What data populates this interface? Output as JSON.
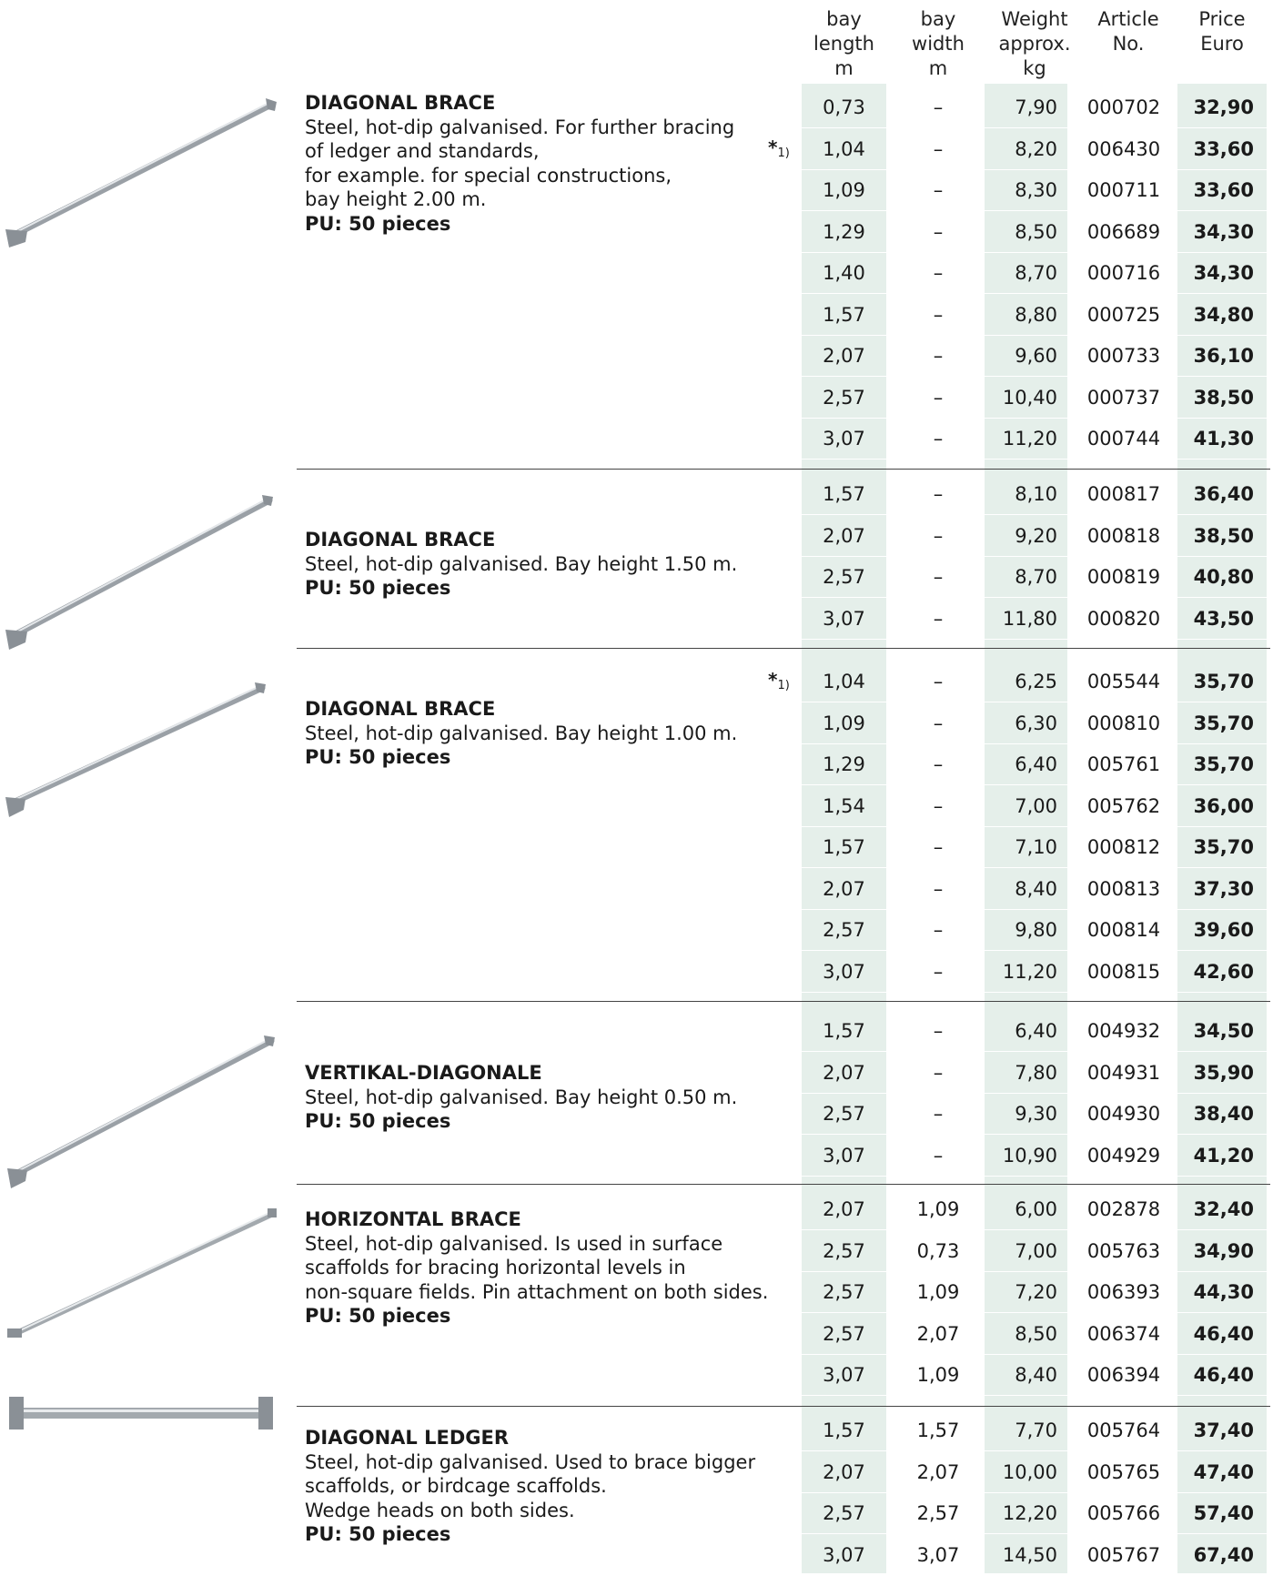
{
  "headers": {
    "bay_length": [
      "bay",
      "length m"
    ],
    "bay_width": [
      "bay width",
      "m"
    ],
    "weight": [
      "Weight",
      "approx. kg"
    ],
    "article": [
      "Article",
      "No."
    ],
    "price": [
      "Price",
      "Euro"
    ]
  },
  "note_marker": {
    "star": "*",
    "sub": "1)"
  },
  "sections": [
    {
      "title": "DIAGONAL BRACE",
      "lines": [
        "Steel, hot-dip galvanised. For further bracing",
        "of ledger and standards,",
        "for example. for special constructions,",
        "bay height 2.00 m."
      ],
      "pu": "PU: 50 pieces",
      "rows": [
        [
          "0,73",
          "–",
          "7,90",
          "000702",
          "32,90"
        ],
        [
          "1,04",
          "–",
          "8,20",
          "006430",
          "33,60"
        ],
        [
          "1,09",
          "–",
          "8,30",
          "000711",
          "33,60"
        ],
        [
          "1,29",
          "–",
          "8,50",
          "006689",
          "34,30"
        ],
        [
          "1,40",
          "–",
          "8,70",
          "000716",
          "34,30"
        ],
        [
          "1,57",
          "–",
          "8,80",
          "000725",
          "34,80"
        ],
        [
          "2,07",
          "–",
          "9,60",
          "000733",
          "36,10"
        ],
        [
          "2,57",
          "–",
          "10,40",
          "000737",
          "38,50"
        ],
        [
          "3,07",
          "–",
          "11,20",
          "000744",
          "41,30"
        ]
      ]
    },
    {
      "title": "DIAGONAL BRACE",
      "lines": [
        "Steel, hot-dip galvanised. Bay height 1.50 m."
      ],
      "pu": "PU: 50 pieces",
      "rows": [
        [
          "1,57",
          "–",
          "8,10",
          "000817",
          "36,40"
        ],
        [
          "2,07",
          "–",
          "9,20",
          "000818",
          "38,50"
        ],
        [
          "2,57",
          "–",
          "8,70",
          "000819",
          "40,80"
        ],
        [
          "3,07",
          "–",
          "11,80",
          "000820",
          "43,50"
        ]
      ]
    },
    {
      "title": "DIAGONAL BRACE",
      "lines": [
        "Steel, hot-dip galvanised. Bay height 1.00 m."
      ],
      "pu": "PU: 50 pieces",
      "rows": [
        [
          "1,04",
          "–",
          "6,25",
          "005544",
          "35,70"
        ],
        [
          "1,09",
          "–",
          "6,30",
          "000810",
          "35,70"
        ],
        [
          "1,29",
          "–",
          "6,40",
          "005761",
          "35,70"
        ],
        [
          "1,54",
          "–",
          "7,00",
          "005762",
          "36,00"
        ],
        [
          "1,57",
          "–",
          "7,10",
          "000812",
          "35,70"
        ],
        [
          "2,07",
          "–",
          "8,40",
          "000813",
          "37,30"
        ],
        [
          "2,57",
          "–",
          "9,80",
          "000814",
          "39,60"
        ],
        [
          "3,07",
          "–",
          "11,20",
          "000815",
          "42,60"
        ]
      ]
    },
    {
      "title": "VERTIKAL-DIAGONALE",
      "lines": [
        "Steel, hot-dip galvanised. Bay height 0.50 m."
      ],
      "pu": "PU: 50 pieces",
      "rows": [
        [
          "1,57",
          "–",
          "6,40",
          "004932",
          "34,50"
        ],
        [
          "2,07",
          "–",
          "7,80",
          "004931",
          "35,90"
        ],
        [
          "2,57",
          "–",
          "9,30",
          "004930",
          "38,40"
        ],
        [
          "3,07",
          "–",
          "10,90",
          "004929",
          "41,20"
        ]
      ]
    },
    {
      "title": "HORIZONTAL BRACE",
      "lines": [
        "Steel, hot-dip galvanised. Is used in surface",
        "scaffolds for bracing horizontal levels in",
        "non-square fields. Pin attachment on both sides."
      ],
      "pu": "PU: 50 pieces",
      "rows": [
        [
          "2,07",
          "1,09",
          "6,00",
          "002878",
          "32,40"
        ],
        [
          "2,57",
          "0,73",
          "7,00",
          "005763",
          "34,90"
        ],
        [
          "2,57",
          "1,09",
          "7,20",
          "006393",
          "44,30"
        ],
        [
          "2,57",
          "2,07",
          "8,50",
          "006374",
          "46,40"
        ],
        [
          "3,07",
          "1,09",
          "8,40",
          "006394",
          "46,40"
        ]
      ]
    },
    {
      "title": "DIAGONAL LEDGER",
      "lines": [
        "Steel, hot-dip galvanised. Used to brace bigger",
        "scaffolds, or birdcage scaffolds.",
        "Wedge heads on both sides."
      ],
      "pu": "PU: 50 pieces",
      "rows": [
        [
          "1,57",
          "1,57",
          "7,70",
          "005764",
          "37,40"
        ],
        [
          "2,07",
          "2,07",
          "10,00",
          "005765",
          "47,40"
        ],
        [
          "2,57",
          "2,57",
          "12,20",
          "005766",
          "57,40"
        ],
        [
          "3,07",
          "3,07",
          "14,50",
          "005767",
          "67,40"
        ]
      ]
    }
  ]
}
